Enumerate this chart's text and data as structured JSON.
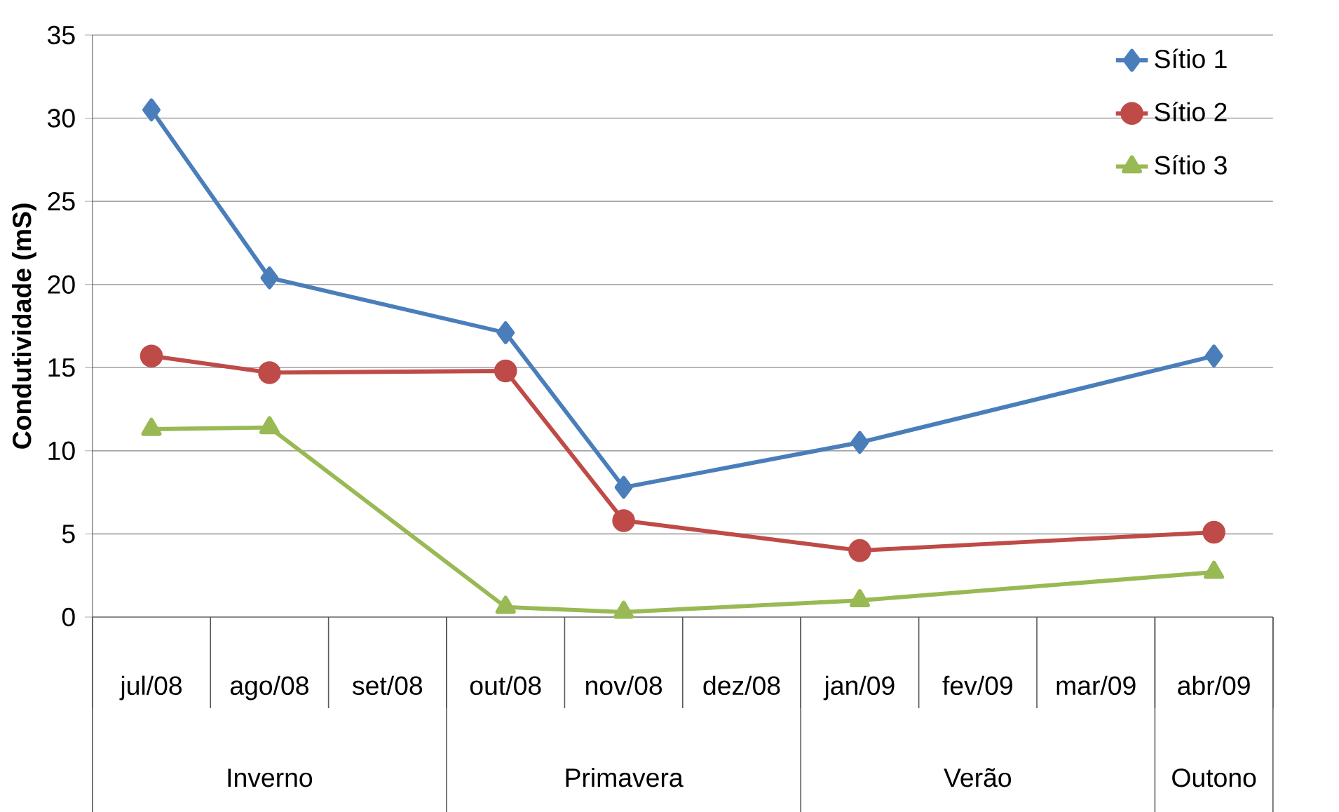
{
  "chart_data": {
    "type": "line",
    "ylabel": "Condutividade (mS)",
    "categories": [
      "jul/08",
      "ago/08",
      "set/08",
      "out/08",
      "nov/08",
      "dez/08",
      "jan/09",
      "fev/09",
      "mar/09",
      "abr/09"
    ],
    "series": [
      {
        "name": "Sítio 1",
        "color": "#4a7ebb",
        "marker": "diamond",
        "values": [
          30.5,
          20.4,
          null,
          17.1,
          7.8,
          null,
          10.5,
          null,
          null,
          15.7
        ]
      },
      {
        "name": "Sítio 2",
        "color": "#be4b48",
        "marker": "circle",
        "values": [
          15.7,
          14.7,
          null,
          14.8,
          5.8,
          null,
          4.0,
          null,
          null,
          5.1
        ]
      },
      {
        "name": "Sítio 3",
        "color": "#98b954",
        "marker": "triangle",
        "values": [
          11.3,
          11.4,
          null,
          0.6,
          0.3,
          null,
          1.0,
          null,
          null,
          2.7
        ]
      }
    ],
    "annotations": [
      "Inverno",
      "Primavera",
      "Verão",
      "Outono"
    ],
    "ylim": [
      0,
      35
    ],
    "yticks": [
      0,
      5,
      10,
      15,
      20,
      25,
      30,
      35
    ],
    "grid": "y",
    "legend": "top right"
  }
}
